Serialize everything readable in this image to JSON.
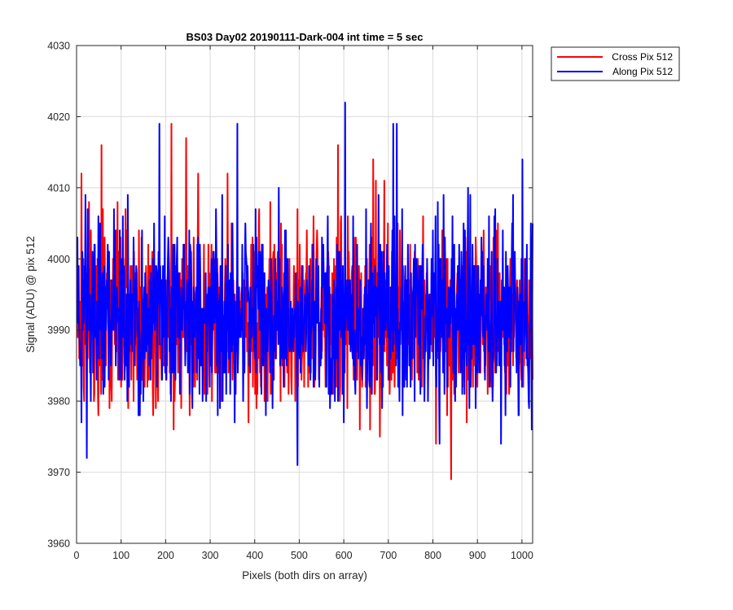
{
  "chart_data": {
    "type": "line",
    "title": "BS03 Day02 20190111-Dark-004 int time = 5 sec",
    "xlabel": "Pixels (both dirs on array)",
    "ylabel": "Signal (ADU) @ pix 512",
    "xlim": [
      0,
      1024
    ],
    "ylim": [
      3960,
      4030
    ],
    "xticks": [
      0,
      100,
      200,
      300,
      400,
      500,
      600,
      700,
      800,
      900,
      1000
    ],
    "yticks": [
      3960,
      3970,
      3980,
      3990,
      4000,
      4010,
      4020,
      4030
    ],
    "grid": true,
    "legend_position": "outside-top-right",
    "n_points": 1024,
    "series": [
      {
        "name": "Cross Pix 512",
        "color": "#ff0000",
        "mean": 3992,
        "std": 6.5,
        "min": 3969,
        "max": 4019,
        "peaks": [
          [
            10,
            4012
          ],
          [
            55,
            4016
          ],
          [
            212,
            4019
          ],
          [
            245,
            4017
          ],
          [
            272,
            4012
          ],
          [
            338,
            4012
          ],
          [
            586,
            4016
          ],
          [
            665,
            4014
          ],
          [
            690,
            4011
          ],
          [
            840,
            3969
          ]
        ]
      },
      {
        "name": "Along Pix 512",
        "color": "#0000ff",
        "mean": 3992,
        "std": 6.5,
        "min": 3971,
        "max": 4022,
        "peaks": [
          [
            185,
            4019
          ],
          [
            360,
            4019
          ],
          [
            602,
            4022
          ],
          [
            710,
            4019
          ],
          [
            718,
            4019
          ],
          [
            1000,
            4014
          ],
          [
            22,
            3972
          ],
          [
            495,
            3971
          ]
        ]
      }
    ]
  }
}
